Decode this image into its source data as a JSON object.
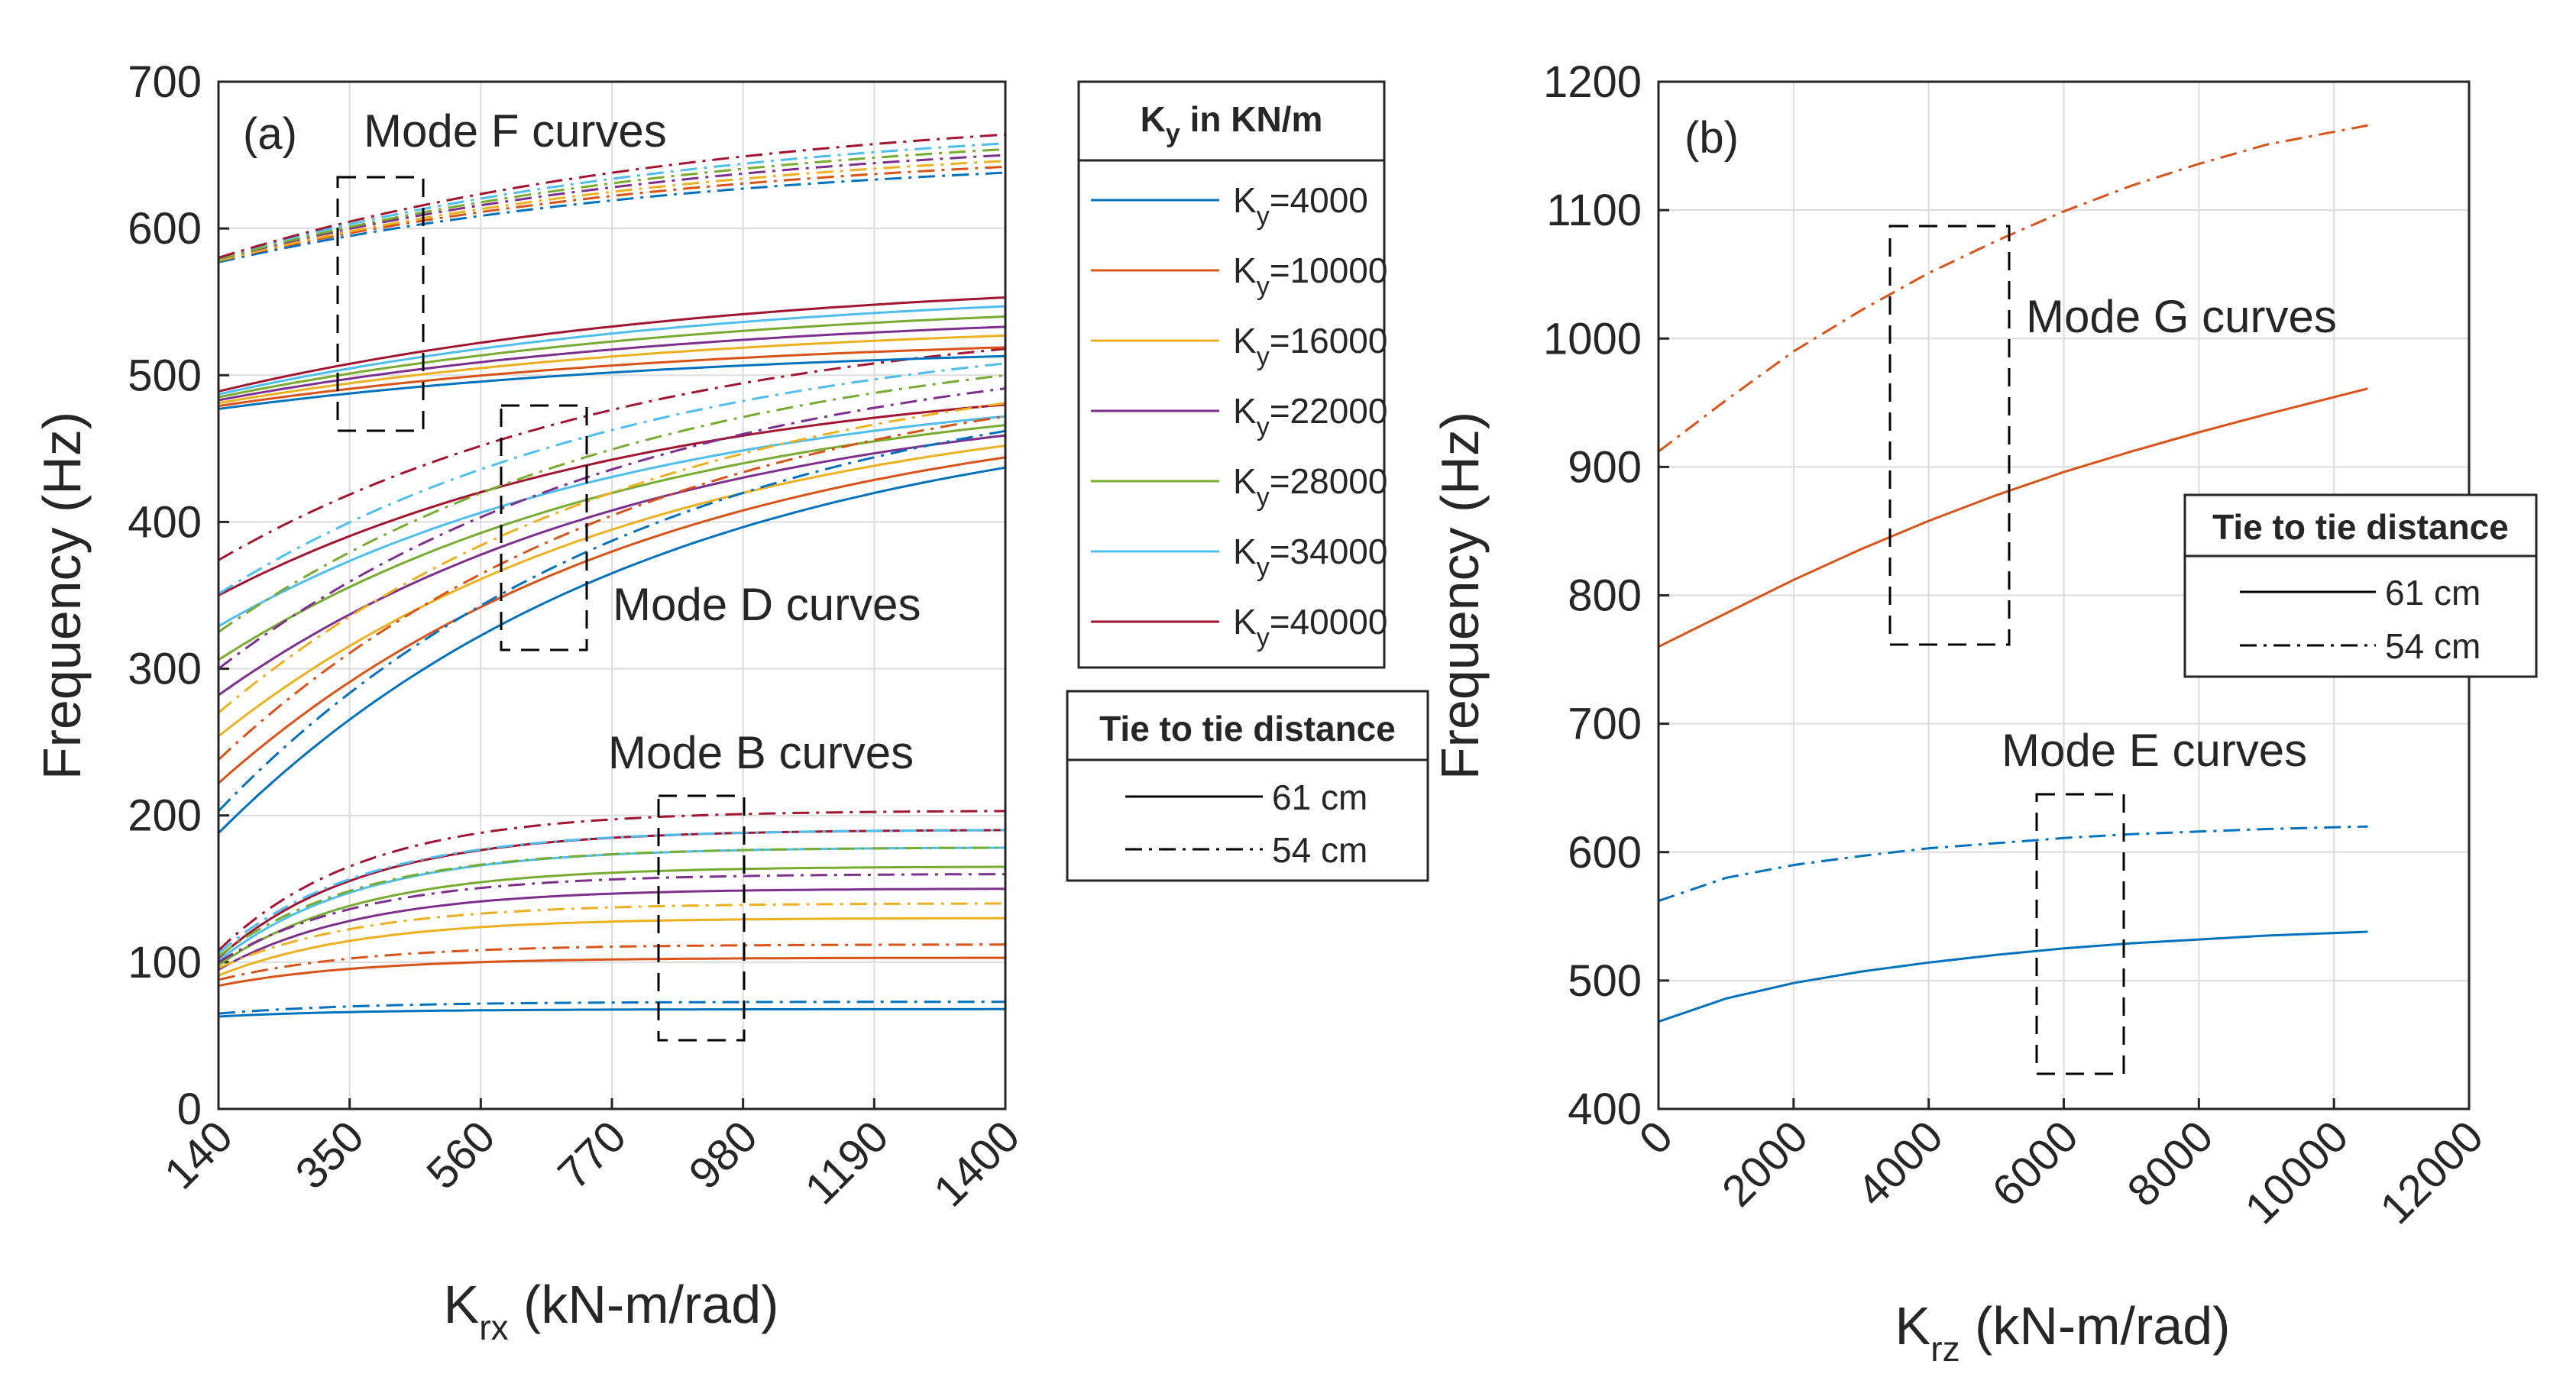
{
  "chart_data": [
    {
      "id": "a",
      "type": "line",
      "panel_label": "(a)",
      "xlabel_main": "K",
      "xlabel_sub": "rx",
      "xlabel_rest": " (kN-m/rad)",
      "ylabel": "Frequency (Hz)",
      "xlim": [
        140,
        1400
      ],
      "ylim": [
        0,
        700
      ],
      "xticks": [
        "140",
        "350",
        "560",
        "770",
        "980",
        "1190",
        "1400"
      ],
      "yticks": [
        "0",
        "100",
        "200",
        "300",
        "400",
        "500",
        "600",
        "700"
      ],
      "grid": true,
      "annotations": [
        "Mode F curves",
        "Mode D curves",
        "Mode B curves"
      ],
      "series_groups": [
        {
          "mode": "B",
          "ky_values": [
            4000,
            10000,
            16000,
            22000,
            28000,
            34000,
            40000
          ],
          "solid_61cm": {
            "start": [
              63,
              84,
              91,
              95,
              98,
              101,
              103
            ],
            "end": [
              68,
              103,
              130,
              150,
              165,
              178,
              190
            ]
          },
          "dashdot_54cm": {
            "start": [
              65,
              88,
              96,
              100,
              104,
              106,
              108
            ],
            "end": [
              73,
              112,
              140,
              160,
              178,
              190,
              203
            ]
          }
        },
        {
          "mode": "D",
          "ky_values": [
            4000,
            10000,
            16000,
            22000,
            28000,
            34000,
            40000
          ],
          "solid_61cm": {
            "start": [
              188,
              222,
              254,
              282,
              306,
              329,
              350
            ],
            "end": [
              437,
              444,
              452,
              459,
              466,
              472,
              480
            ]
          },
          "dashdot_54cm": {
            "start": [
              203,
              238,
              270,
              300,
              325,
              351,
              374
            ],
            "end": [
              462,
              472,
              481,
              491,
              500,
              508,
              518
            ]
          }
        },
        {
          "mode": "F",
          "ky_values": [
            4000,
            10000,
            16000,
            22000,
            28000,
            34000,
            40000
          ],
          "solid_61cm": {
            "start": [
              477,
              479,
              481,
              483,
              485,
              487,
              489
            ],
            "end": [
              513,
              519,
              527,
              533,
              540,
              547,
              553
            ]
          },
          "dashdot_54cm": {
            "start": [
              577,
              578,
              578,
              579,
              579,
              580,
              580
            ],
            "end": [
              638,
              642,
              646,
              650,
              654,
              658,
              664
            ]
          }
        }
      ]
    },
    {
      "id": "b",
      "type": "line",
      "panel_label": "(b)",
      "xlabel_main": "K",
      "xlabel_sub": "rz",
      "xlabel_rest": " (kN-m/rad)",
      "ylabel": "Frequency (Hz)",
      "xlim": [
        0,
        12000
      ],
      "ylim": [
        400,
        1200
      ],
      "xticks": [
        "0",
        "2000",
        "4000",
        "6000",
        "8000",
        "10000",
        "12000"
      ],
      "yticks": [
        "400",
        "500",
        "600",
        "700",
        "800",
        "900",
        "1000",
        "1100",
        "1200"
      ],
      "grid": true,
      "annotations": [
        "Mode G curves",
        "Mode E curves"
      ],
      "series": [
        {
          "name": "Mode E, 61 cm",
          "x": [
            0,
            1000,
            2000,
            3000,
            4000,
            5000,
            6000,
            7000,
            8000,
            9000,
            10500
          ],
          "values": [
            468,
            486,
            498,
            507,
            514,
            520,
            525,
            529,
            532,
            535,
            538
          ]
        },
        {
          "name": "Mode E, 54 cm",
          "x": [
            0,
            1000,
            2000,
            3000,
            4000,
            5000,
            6000,
            7000,
            8000,
            9000,
            10500
          ],
          "values": [
            562,
            580,
            590,
            597,
            603,
            607,
            611,
            614,
            616,
            618,
            620
          ]
        },
        {
          "name": "Mode G, 61 cm",
          "x": [
            0,
            1000,
            2000,
            3000,
            4000,
            5000,
            6000,
            7000,
            8000,
            9000,
            10500
          ],
          "values": [
            760,
            786,
            812,
            836,
            858,
            878,
            896,
            912,
            927,
            941,
            961
          ]
        },
        {
          "name": "Mode G, 54 cm",
          "x": [
            0,
            1000,
            2000,
            3000,
            4000,
            5000,
            6000,
            7000,
            8000,
            9000,
            10500
          ],
          "values": [
            912,
            952,
            990,
            1022,
            1051,
            1076,
            1099,
            1119,
            1136,
            1151,
            1166
          ]
        }
      ]
    }
  ],
  "legend_ky": {
    "title_main": "K",
    "title_sub": "y",
    "title_rest": " in KN/m",
    "items": [
      {
        "main": "K",
        "sub": "y",
        "rest": "=4000",
        "color": "#0072BD"
      },
      {
        "main": "K",
        "sub": "y",
        "rest": "=10000",
        "color": "#D95319"
      },
      {
        "main": "K",
        "sub": "y",
        "rest": "=16000",
        "color": "#EDB120"
      },
      {
        "main": "K",
        "sub": "y",
        "rest": "=22000",
        "color": "#7E2F8E"
      },
      {
        "main": "K",
        "sub": "y",
        "rest": "=28000",
        "color": "#77AC30"
      },
      {
        "main": "K",
        "sub": "y",
        "rest": "=34000",
        "color": "#4DBEEE"
      },
      {
        "main": "K",
        "sub": "y",
        "rest": "=40000",
        "color": "#A2142F"
      }
    ]
  },
  "legend_tie_a": {
    "title": "Tie to tie distance",
    "items": [
      {
        "label": "61 cm",
        "style": "solid"
      },
      {
        "label": "54 cm",
        "style": "dashdot"
      }
    ]
  },
  "legend_tie_b": {
    "title": "Tie to tie distance",
    "items": [
      {
        "label": "61 cm",
        "style": "solid"
      },
      {
        "label": "54 cm",
        "style": "dashdot"
      }
    ]
  }
}
